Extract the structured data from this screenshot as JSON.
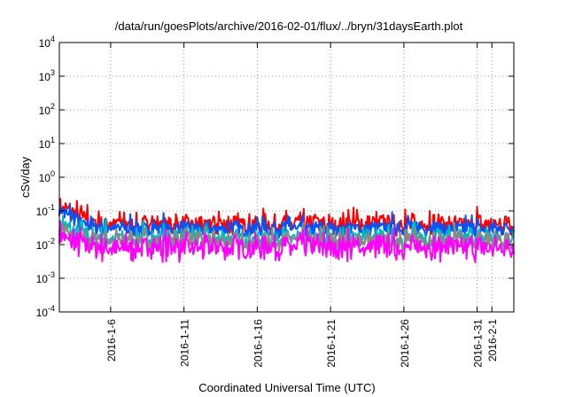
{
  "chart_data": {
    "type": "area",
    "title": "/data/run/goesPlots/archive/2016-02-01/flux/../bryn/31daysEarth.plot",
    "xlabel": "Coordinated Universal Time (UTC)",
    "ylabel": "cSv/day",
    "yscale": "log",
    "ylim_exponents": [
      -4,
      4
    ],
    "y_ticks": [
      {
        "base": "10",
        "exp": "-4",
        "value": 0.0001
      },
      {
        "base": "10",
        "exp": "-3",
        "value": 0.001
      },
      {
        "base": "10",
        "exp": "-2",
        "value": 0.01
      },
      {
        "base": "10",
        "exp": "-1",
        "value": 0.1
      },
      {
        "base": "10",
        "exp": "0",
        "value": 1
      },
      {
        "base": "10",
        "exp": "1",
        "value": 10
      },
      {
        "base": "10",
        "exp": "2",
        "value": 100
      },
      {
        "base": "10",
        "exp": "3",
        "value": 1000
      },
      {
        "base": "10",
        "exp": "4",
        "value": 10000
      }
    ],
    "xlim": [
      "2016-01-02T12:00",
      "2016-02-02T12:00"
    ],
    "x_ticks": [
      {
        "label": "2016-1-6",
        "date": "2016-01-06"
      },
      {
        "label": "2016-1-11",
        "date": "2016-01-11"
      },
      {
        "label": "2016-1-16",
        "date": "2016-01-16"
      },
      {
        "label": "2016-1-21",
        "date": "2016-01-21"
      },
      {
        "label": "2016-1-26",
        "date": "2016-01-26"
      },
      {
        "label": "2016-1-31",
        "date": "2016-01-31"
      },
      {
        "label": "2016-2-1",
        "date": "2016-02-01"
      }
    ],
    "grid": true,
    "legend": "none",
    "series": [
      {
        "color": "#ff0000",
        "typical": 0.04,
        "start": 0.16,
        "spread": 0.25
      },
      {
        "color": "#0055ff",
        "typical": 0.03,
        "start": 0.12,
        "spread": 0.18
      },
      {
        "color": "#00bbbb",
        "typical": 0.015,
        "start": 0.04,
        "spread": 0.25
      },
      {
        "color": "#888888",
        "typical": 0.013,
        "start": 0.03,
        "spread": 0.22
      },
      {
        "color": "#ff00ff",
        "typical": 0.008,
        "start": 0.02,
        "spread": 0.3
      }
    ]
  }
}
